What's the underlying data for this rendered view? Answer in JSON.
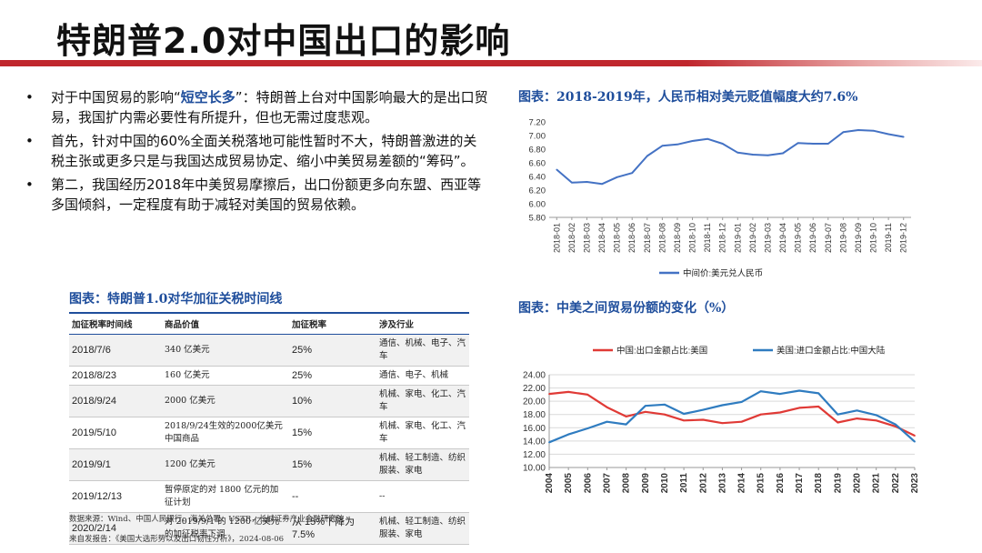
{
  "page": {
    "title": "特朗普2.0对中国出口的影响",
    "bullets": [
      {
        "pre": "对于中国贸易的影响“",
        "highlight": "短空长多",
        "post": "”：特朗普上台对中国影响最大的是出口贸易，我国扩内需必要性有所提升，但也无需过度悲观。"
      },
      {
        "pre": "首先，针对中国的60%全面关税落地可能性暂时不大，特朗普激进的关税主张或更多只是与我国达成贸易协定、缩小中美贸易差额的“筹码”。",
        "highlight": "",
        "post": ""
      },
      {
        "pre": "第二，我国经历2018年中美贸易摩擦后，出口份额更多向东盟、西亚等多国倾斜，一定程度有助于减轻对美国的贸易依赖。",
        "highlight": "",
        "post": ""
      }
    ],
    "bullet_symbol": "•",
    "table_title": "图表：特朗普1.0对华加征关税时间线",
    "table": {
      "headers": [
        "加征税率时间线",
        "商品价值",
        "加征税率",
        "涉及行业"
      ],
      "rows": [
        [
          "2018/7/6",
          "340 亿美元",
          "25%",
          "通信、机械、电子、汽车"
        ],
        [
          "2018/8/23",
          "160 亿美元",
          "25%",
          "通信、电子、机械"
        ],
        [
          "2018/9/24",
          "2000 亿美元",
          "10%",
          "机械、家电、化工、汽车"
        ],
        [
          "2019/5/10",
          "2018/9/24生效的2000亿美元中国商品",
          "15%",
          "机械、家电、化工、汽车"
        ],
        [
          "2019/9/1",
          "1200 亿美元",
          "15%",
          "机械、轻工制造、纺织服装、家电"
        ],
        [
          "2019/12/13",
          "暂停原定的对 1800 亿元的加征计划",
          "--",
          "--"
        ],
        [
          "2020/2/14",
          "对 2019/9/1 的 1200 亿美元的加征税率下调",
          "从 15%下降为 7.5%",
          "机械、轻工制造、纺织服装、家电"
        ]
      ]
    },
    "source_lines": [
      "数据来源：Wind、中国人民银行、海关总署、USTR，长城证券产业金融研究院",
      "来自发报告：《美国大选形势以及出口韧性分析》，2024-08-06"
    ]
  },
  "chart_data": [
    {
      "type": "line",
      "title": "图表：2018-2019年，人民币相对美元贬值幅度大约7.6%",
      "x": [
        "2018-01",
        "2018-02",
        "2018-03",
        "2018-04",
        "2018-05",
        "2018-06",
        "2018-07",
        "2018-08",
        "2018-09",
        "2018-10",
        "2018-11",
        "2018-12",
        "2019-01",
        "2019-02",
        "2019-03",
        "2019-04",
        "2019-05",
        "2019-06",
        "2019-07",
        "2019-08",
        "2019-09",
        "2019-10",
        "2019-11",
        "2019-12"
      ],
      "series": [
        {
          "name": "中间价:美元兑人民币",
          "color": "#4472c4",
          "values": [
            6.5,
            6.31,
            6.32,
            6.29,
            6.39,
            6.45,
            6.7,
            6.85,
            6.87,
            6.92,
            6.95,
            6.88,
            6.75,
            6.72,
            6.71,
            6.74,
            6.89,
            6.88,
            6.88,
            7.05,
            7.08,
            7.07,
            7.02,
            6.98
          ]
        }
      ],
      "ylim": [
        5.8,
        7.2
      ],
      "yticks": [
        "7.20",
        "7.00",
        "6.80",
        "6.60",
        "6.40",
        "6.20",
        "6.00",
        "5.80"
      ],
      "legend_position": "bottom"
    },
    {
      "type": "line",
      "title": "图表：中美之间贸易份额的变化（%）",
      "x": [
        "2004",
        "2005",
        "2006",
        "2007",
        "2008",
        "2009",
        "2010",
        "2011",
        "2012",
        "2013",
        "2014",
        "2015",
        "2016",
        "2017",
        "2018",
        "2019",
        "2020",
        "2021",
        "2022",
        "2023"
      ],
      "series": [
        {
          "name": "中国:出口金额占比:美国",
          "color": "#e03a36",
          "values": [
            21.1,
            21.4,
            21.0,
            19.1,
            17.7,
            18.4,
            18.0,
            17.1,
            17.2,
            16.7,
            16.9,
            18.0,
            18.3,
            19.0,
            19.2,
            16.8,
            17.4,
            17.1,
            16.2,
            14.8
          ]
        },
        {
          "name": "美国:进口金额占比:中国大陆",
          "color": "#2f7cc0",
          "values": [
            13.8,
            15.0,
            15.9,
            16.9,
            16.5,
            19.3,
            19.5,
            18.1,
            18.7,
            19.4,
            19.9,
            21.5,
            21.1,
            21.6,
            21.2,
            18.0,
            18.6,
            17.9,
            16.5,
            13.9
          ]
        }
      ],
      "ylim": [
        10.0,
        24.0
      ],
      "yticks": [
        "24.00",
        "22.00",
        "20.00",
        "18.00",
        "16.00",
        "14.00",
        "12.00",
        "10.00"
      ],
      "legend_position": "top"
    }
  ]
}
